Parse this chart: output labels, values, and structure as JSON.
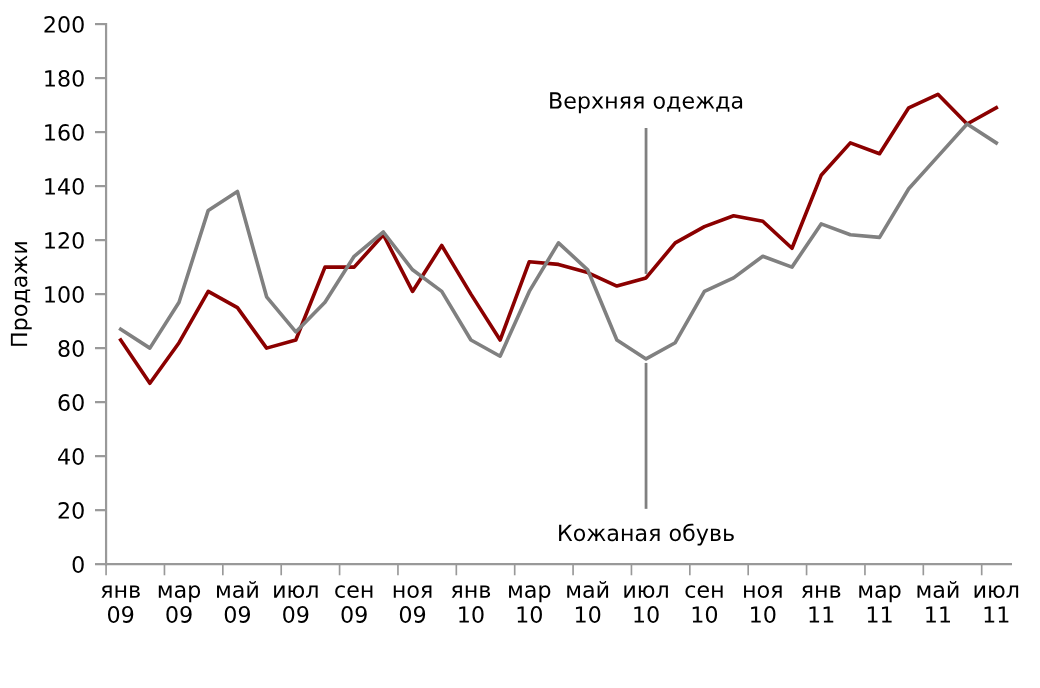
{
  "chart_data": {
    "type": "line",
    "ylabel": "Продажи",
    "categories": [
      "янв\n09",
      null,
      "мар\n09",
      null,
      "май\n09",
      null,
      "июл\n09",
      null,
      "сен\n09",
      null,
      "ноя\n09",
      null,
      "янв\n10",
      null,
      "мар\n10",
      null,
      "май\n10",
      null,
      "июл\n10",
      null,
      "сен\n10",
      null,
      "ноя\n10",
      null,
      "янв\n11",
      null,
      "мар\n11",
      null,
      "май\n11",
      null,
      "июл\n11"
    ],
    "series": [
      {
        "color": "#8b0000",
        "values": [
          83,
          67,
          82,
          101,
          95,
          80,
          83,
          110,
          110,
          122,
          101,
          118,
          100,
          83,
          112,
          111,
          108,
          103,
          106,
          119,
          125,
          129,
          127,
          117,
          144,
          156,
          152,
          169,
          174,
          163,
          169
        ]
      },
      {
        "color": "#808080",
        "values": [
          87,
          80,
          97,
          131,
          138,
          99,
          86,
          97,
          114,
          123,
          109,
          101,
          83,
          77,
          101,
          119,
          109,
          83,
          76,
          82,
          101,
          106,
          114,
          110,
          126,
          122,
          121,
          139,
          151,
          163,
          156
        ]
      }
    ],
    "annotations": [
      {
        "text": "Верхняя одежда",
        "x": "июл\n10",
        "y": 106
      },
      {
        "text": "Кожаная обувь",
        "x": "июл\n10",
        "y": 76
      }
    ],
    "ylim": [
      0,
      200
    ],
    "yticks": [
      0,
      20,
      40,
      60,
      80,
      100,
      120,
      140,
      160,
      180,
      200
    ],
    "grid": false,
    "legend": false
  }
}
